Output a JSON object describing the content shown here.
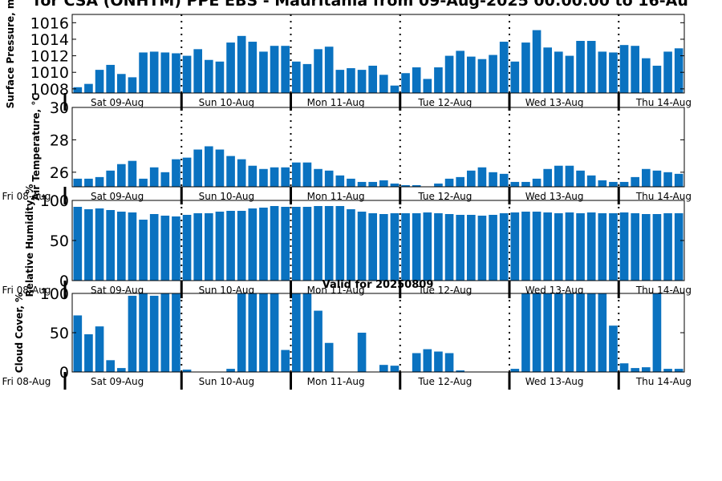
{
  "title": "for CSA (ONHTM) PPE EBS - Mauritania from 09-Aug-2025 00:00:00 to 16-Au",
  "valid_label": "Valid for 20250809",
  "colors": {
    "bar": "#0a72c0",
    "axis": "#000000",
    "divider": "#000000"
  },
  "chart_data": [
    {
      "type": "bar",
      "ylabel": "Surface Pressure, m",
      "ylim": [
        1007.5,
        1017
      ],
      "yticks": [
        "1008",
        "1010",
        "1012",
        "1014",
        "1016"
      ],
      "xticks": [
        "Sat 09-Aug",
        "Sun 10-Aug",
        "Mon 11-Aug",
        "Tue 12-Aug",
        "Wed 13-Aug",
        "Thu 14-Aug"
      ],
      "left_tick": "",
      "values": [
        1008.2,
        1008.6,
        1010.3,
        1010.9,
        1009.8,
        1009.4,
        1012.4,
        1012.5,
        1012.4,
        1012.3,
        1012.0,
        1012.8,
        1011.5,
        1011.3,
        1013.6,
        1014.4,
        1013.7,
        1012.5,
        1013.2,
        1013.2,
        1011.3,
        1011.0,
        1012.8,
        1013.1,
        1010.3,
        1010.5,
        1010.3,
        1010.8,
        1009.7,
        1008.4,
        1009.9,
        1010.6,
        1009.2,
        1010.6,
        1012.0,
        1012.6,
        1011.9,
        1011.6,
        1012.1,
        1013.7,
        1011.3,
        1013.6,
        1015.1,
        1013.0,
        1012.5,
        1012.0,
        1013.8,
        1013.8,
        1012.5,
        1012.4,
        1013.3,
        1013.2,
        1011.7,
        1010.8,
        1012.5,
        1012.9
      ]
    },
    {
      "type": "bar",
      "ylabel": "Air Temperature, °C",
      "ylim": [
        25.1,
        30
      ],
      "yticks": [
        "26",
        "28",
        "30"
      ],
      "xticks": [
        "Sat 09-Aug",
        "Sun 10-Aug",
        "Mon 11-Aug",
        "Tue 12-Aug",
        "Wed 13-Aug",
        "Thu 14-Aug"
      ],
      "left_tick": "Fri 08-Aug",
      "values": [
        25.6,
        25.6,
        25.7,
        26.1,
        26.5,
        26.7,
        25.6,
        26.3,
        26.0,
        26.8,
        26.9,
        27.4,
        27.6,
        27.4,
        27.0,
        26.8,
        26.4,
        26.2,
        26.3,
        26.3,
        26.6,
        26.6,
        26.2,
        26.1,
        25.8,
        25.6,
        25.4,
        25.4,
        25.5,
        25.3,
        25.2,
        25.2,
        25.0,
        25.3,
        25.6,
        25.7,
        26.1,
        26.3,
        26.0,
        25.9,
        25.4,
        25.4,
        25.6,
        26.2,
        26.4,
        26.4,
        26.1,
        25.8,
        25.5,
        25.4,
        25.4,
        25.7,
        26.2,
        26.1,
        26.0,
        25.9
      ]
    },
    {
      "type": "bar",
      "ylabel": "Relative Humidity, %",
      "ylim": [
        0,
        100
      ],
      "yticks": [
        "0",
        "50",
        "100"
      ],
      "xticks": [
        "Sat 09-Aug",
        "Sun 10-Aug",
        "Mon 11-Aug",
        "Tue 12-Aug",
        "Wed 13-Aug",
        "Thu 14-Aug"
      ],
      "left_tick": "Fri 08-Aug",
      "values": [
        92,
        89,
        90,
        88,
        86,
        85,
        76,
        83,
        81,
        80,
        82,
        84,
        84,
        86,
        87,
        87,
        90,
        91,
        93,
        92,
        92,
        92,
        93,
        93,
        93,
        89,
        86,
        84,
        83,
        84,
        84,
        84,
        85,
        84,
        83,
        82,
        82,
        81,
        82,
        84,
        85,
        86,
        86,
        85,
        84,
        85,
        84,
        85,
        84,
        84,
        85,
        84,
        83,
        83,
        84,
        84,
        86
      ]
    },
    {
      "type": "bar",
      "ylabel": "Cloud Cover, %",
      "ylim": [
        0,
        100
      ],
      "yticks": [
        "0",
        "50",
        "100"
      ],
      "xticks": [
        "Sat 09-Aug",
        "Sun 10-Aug",
        "Mon 11-Aug",
        "Tue 12-Aug",
        "Wed 13-Aug",
        "Thu 14-Aug"
      ],
      "left_tick": "Fri 08-Aug",
      "values": [
        72,
        48,
        58,
        15,
        5,
        97,
        100,
        97,
        100,
        100,
        3,
        0,
        0,
        0,
        4,
        100,
        100,
        100,
        100,
        28,
        100,
        100,
        78,
        37,
        0,
        0,
        50,
        0,
        9,
        8,
        0,
        24,
        29,
        26,
        24,
        2,
        0,
        0,
        0,
        0,
        4,
        100,
        100,
        100,
        100,
        100,
        100,
        100,
        100,
        59,
        11,
        5,
        6,
        100,
        4,
        4,
        4,
        4
      ]
    }
  ]
}
